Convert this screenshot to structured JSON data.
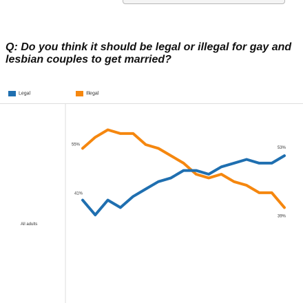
{
  "question": "Q: Do you think it should be legal or illegal for gay and lesbian couples to get married?",
  "legend": [
    {
      "label": "Legal",
      "color": "#1f6fb0"
    },
    {
      "label": "Illegal",
      "color": "#f5870f"
    }
  ],
  "colors": {
    "legal": "#1f6fb0",
    "illegal": "#f5870f",
    "axis": "#dddddd"
  },
  "chart_data": {
    "type": "line",
    "group_label": "All adults",
    "series": [
      {
        "name": "Illegal",
        "color": "#f5870f",
        "start_label": "55%",
        "end_label": "39%",
        "values": [
          55,
          58,
          60,
          59,
          59,
          56,
          55,
          53,
          51,
          48,
          47,
          48,
          46,
          45,
          43,
          43,
          39
        ]
      },
      {
        "name": "Legal",
        "color": "#1f6fb0",
        "start_label": "41%",
        "end_label": "53%",
        "values": [
          41,
          37,
          41,
          39,
          42,
          44,
          46,
          47,
          49,
          49,
          48,
          50,
          51,
          52,
          51,
          51,
          53
        ]
      }
    ],
    "ylim": [
      32,
      64
    ]
  }
}
